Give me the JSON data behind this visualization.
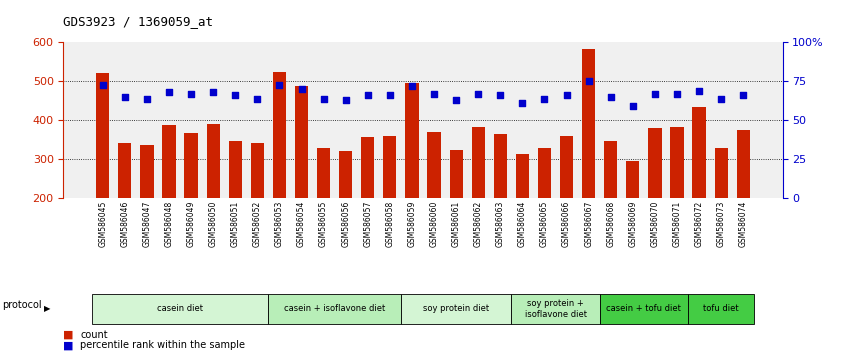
{
  "title": "GDS3923 / 1369059_at",
  "samples": [
    "GSM586045",
    "GSM586046",
    "GSM586047",
    "GSM586048",
    "GSM586049",
    "GSM586050",
    "GSM586051",
    "GSM586052",
    "GSM586053",
    "GSM586054",
    "GSM586055",
    "GSM586056",
    "GSM586057",
    "GSM586058",
    "GSM586059",
    "GSM586060",
    "GSM586061",
    "GSM586062",
    "GSM586063",
    "GSM586064",
    "GSM586065",
    "GSM586066",
    "GSM586067",
    "GSM586068",
    "GSM586069",
    "GSM586070",
    "GSM586071",
    "GSM586072",
    "GSM586073",
    "GSM586074"
  ],
  "counts": [
    522,
    343,
    336,
    388,
    368,
    390,
    348,
    343,
    523,
    487,
    328,
    322,
    358,
    360,
    495,
    370,
    323,
    383,
    366,
    313,
    330,
    360,
    582,
    346,
    295,
    380,
    383,
    435,
    330,
    375
  ],
  "percentiles": [
    73,
    65,
    64,
    68,
    67,
    68,
    66,
    64,
    73,
    70,
    64,
    63,
    66,
    66,
    72,
    67,
    63,
    67,
    66,
    61,
    64,
    66,
    75,
    65,
    59,
    67,
    67,
    69,
    64,
    66
  ],
  "groups": [
    {
      "label": "casein diet",
      "start": 0,
      "end": 7,
      "color": "#d4f5d4"
    },
    {
      "label": "casein + isoflavone diet",
      "start": 8,
      "end": 13,
      "color": "#b8eeb8"
    },
    {
      "label": "soy protein diet",
      "start": 14,
      "end": 18,
      "color": "#d4f5d4"
    },
    {
      "label": "soy protein +\nisoflavone diet",
      "start": 19,
      "end": 22,
      "color": "#b8eeb8"
    },
    {
      "label": "casein + tofu diet",
      "start": 23,
      "end": 26,
      "color": "#44cc44"
    },
    {
      "label": "tofu diet",
      "start": 27,
      "end": 29,
      "color": "#44cc44"
    }
  ],
  "ylim": [
    200,
    600
  ],
  "yticks": [
    200,
    300,
    400,
    500,
    600
  ],
  "y2lim": [
    0,
    100
  ],
  "y2ticks": [
    0,
    25,
    50,
    75,
    100
  ],
  "bar_color": "#cc2200",
  "dot_color": "#0000cc",
  "plot_bg": "#f0f0f0",
  "ylabel_color": "#cc2200",
  "y2label_color": "#0000cc",
  "grid_yticks": [
    300,
    400,
    500
  ]
}
